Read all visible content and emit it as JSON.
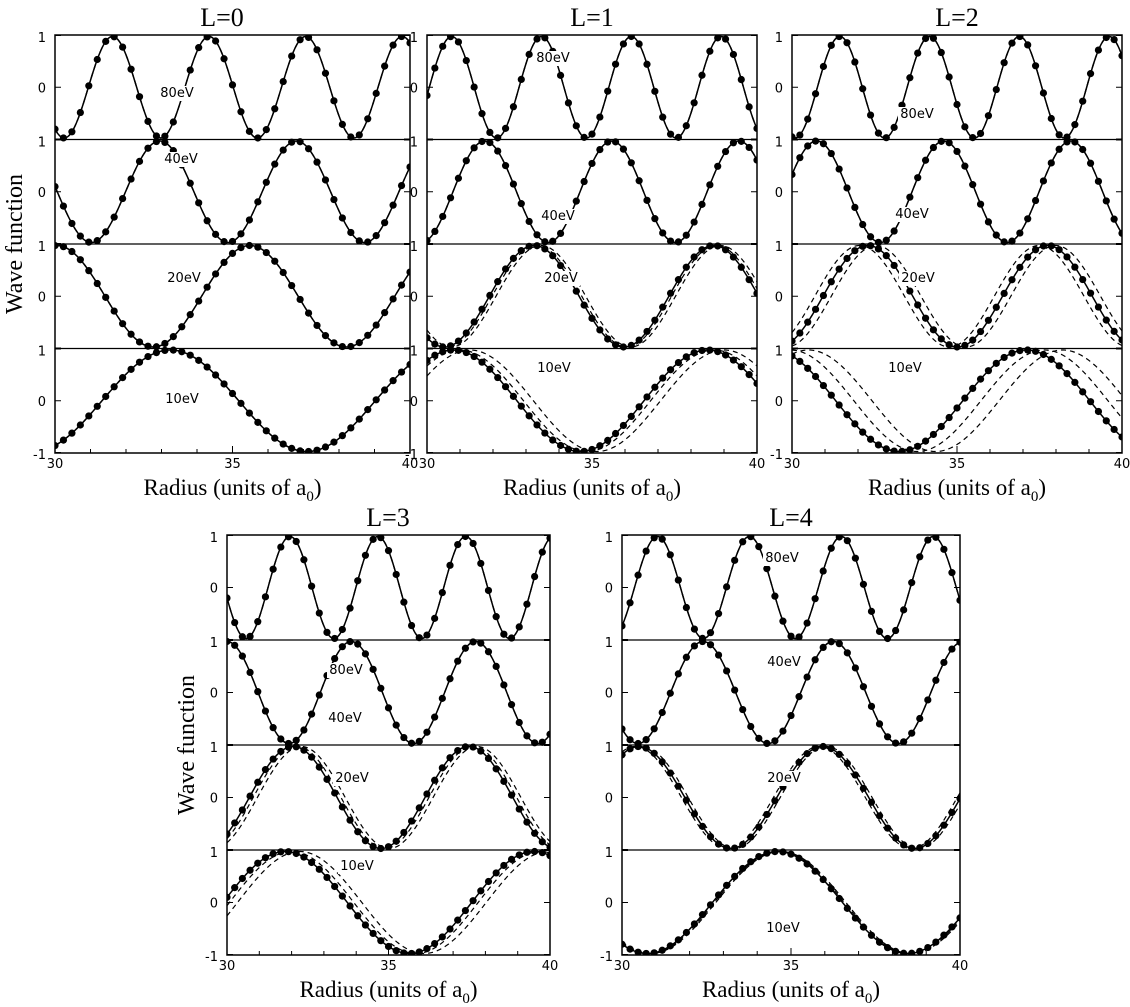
{
  "chart_data": {
    "type": "line",
    "ylabel": "Wave function",
    "xlabel_main": "Radius (units of a",
    "xlabel_sub": "0",
    "xlabel_close": ")",
    "xlim": [
      30,
      40
    ],
    "ylim": [
      -1,
      1
    ],
    "x_ticks": [
      "30",
      "35",
      "40"
    ],
    "y_ticks": [
      "1",
      "0",
      "-1"
    ],
    "panels": [
      {
        "title": "L=0",
        "strips": [
          {
            "energy": "80eV",
            "period": 2.72,
            "phase_x": 31.62,
            "offsets": [
              0,
              0
            ]
          },
          {
            "energy": "40eV",
            "period": 3.85,
            "phase_x": 32.95,
            "offsets": [
              0,
              0
            ]
          },
          {
            "energy": "20eV",
            "period": 5.44,
            "phase_x": 30.05,
            "offsets": [
              0,
              0
            ]
          },
          {
            "energy": "10eV",
            "period": 7.7,
            "phase_x": 33.25,
            "offsets": [
              0,
              0
            ]
          }
        ]
      },
      {
        "title": "L=1",
        "strips": [
          {
            "energy": "80eV",
            "period": 2.72,
            "phase_x": 30.75,
            "offsets": [
              0,
              0
            ]
          },
          {
            "energy": "40eV",
            "period": 3.85,
            "phase_x": 31.75,
            "offsets": [
              0,
              0
            ]
          },
          {
            "energy": "20eV",
            "period": 5.44,
            "phase_x": 33.25,
            "offsets": [
              0.08,
              0.2
            ]
          },
          {
            "energy": "10eV",
            "period": 7.7,
            "phase_x": 30.8,
            "offsets": [
              0.2,
              0.5
            ]
          }
        ]
      },
      {
        "title": "L=2",
        "strips": [
          {
            "energy": "80eV",
            "period": 2.72,
            "phase_x": 31.45,
            "offsets": [
              0,
              0
            ]
          },
          {
            "energy": "40eV",
            "period": 3.85,
            "phase_x": 30.75,
            "offsets": [
              0,
              0
            ]
          },
          {
            "energy": "20eV",
            "period": 5.44,
            "phase_x": 32.3,
            "offsets": [
              -0.25,
              0.25
            ]
          },
          {
            "energy": "10eV",
            "period": 7.7,
            "phase_x": 29.4,
            "offsets": [
              0.55,
              1.1
            ]
          }
        ]
      },
      {
        "title": "L=3",
        "strips": [
          {
            "energy": "80eV",
            "period": 2.72,
            "phase_x": 31.95,
            "offsets": [
              0,
              0
            ]
          },
          {
            "energy": "40eV",
            "period": 3.85,
            "phase_x": 30.0,
            "offsets": [
              0,
              0
            ]
          },
          {
            "energy": "20eV",
            "period": 5.44,
            "phase_x": 32.05,
            "offsets": [
              0.12,
              0.25
            ]
          },
          {
            "energy": "10eV",
            "period": 7.7,
            "phase_x": 31.8,
            "offsets": [
              0.2,
              0.45
            ]
          }
        ]
      },
      {
        "title": "L=4",
        "strips": [
          {
            "energy": "80eV",
            "period": 2.72,
            "phase_x": 31.05,
            "offsets": [
              0,
              0
            ]
          },
          {
            "energy": "40eV",
            "period": 3.85,
            "phase_x": 32.4,
            "offsets": [
              0,
              0
            ]
          },
          {
            "energy": "20eV",
            "period": 5.44,
            "phase_x": 30.5,
            "offsets": [
              -0.1,
              0.1
            ]
          },
          {
            "energy": "10eV",
            "period": 7.7,
            "phase_x": 34.6,
            "offsets": [
              0.05,
              0.1
            ]
          }
        ]
      }
    ]
  }
}
